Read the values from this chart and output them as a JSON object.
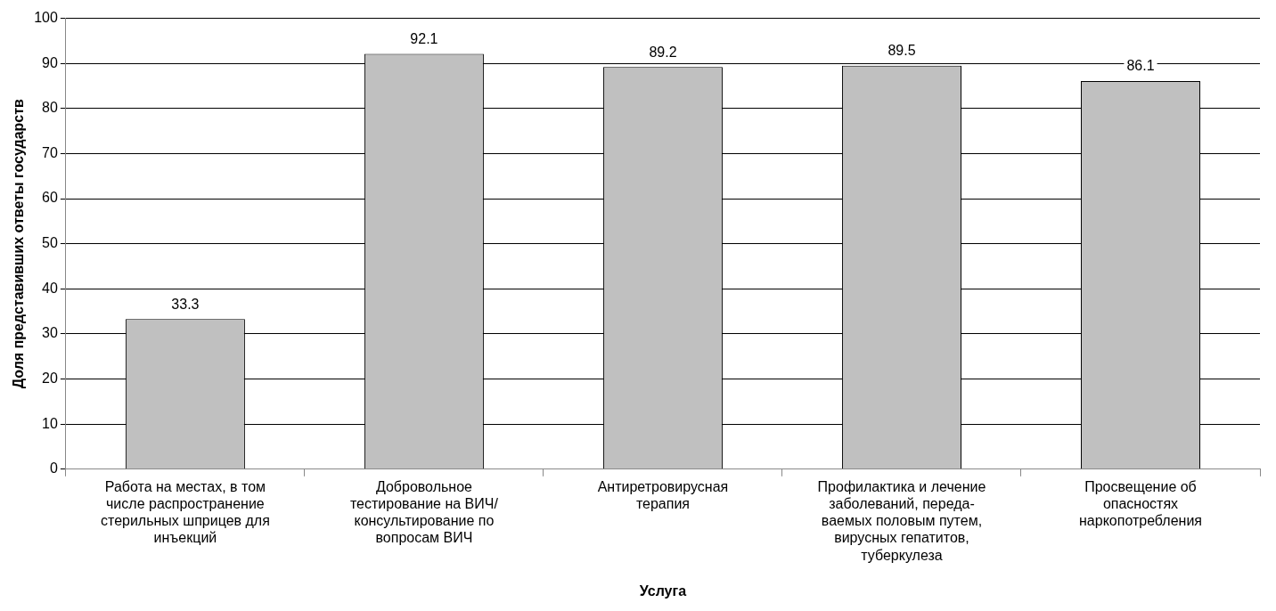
{
  "chart_data": {
    "type": "bar",
    "xlabel": "Услуга",
    "ylabel": "Доля представивших ответы государств",
    "categories": [
      "Работа на местах, в том\nчисле распространение\nстерильных шприцев для\nинъекций",
      "Добровольное\nтестирование на ВИЧ/\nконсультирование по\nвопросам ВИЧ",
      "Антиретровирусная\nтерапия",
      "Профилактика и лечение\nзаболеваний, переда-\nваемых половым путем,\nвирусных гепатитов,\nтуберкулеза",
      "Просвещение об\nопасностях\nнаркопотребления"
    ],
    "values": [
      33.3,
      92.1,
      89.2,
      89.5,
      86.1
    ],
    "color": "#c0c0c0",
    "ylim": [
      0,
      100
    ],
    "yticks": [
      0,
      10,
      20,
      30,
      40,
      50,
      60,
      70,
      80,
      90,
      100
    ],
    "grid": "y",
    "data_labels": true,
    "legend": false
  }
}
